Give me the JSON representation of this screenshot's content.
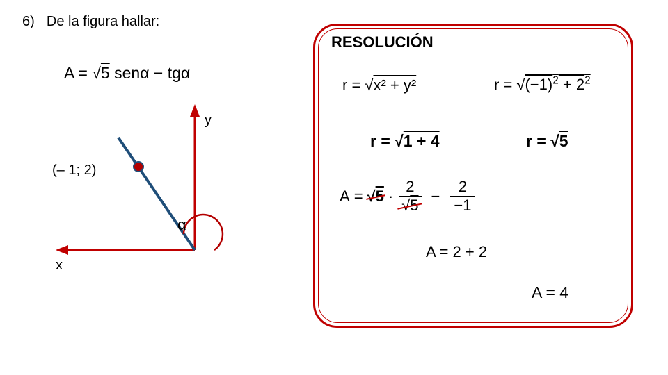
{
  "problem": {
    "number_label": "6)",
    "prompt": "De la figura hallar:",
    "formula_html": "A = √<span class=\"overline\">5</span>&nbsp;senα − tgα"
  },
  "diagram": {
    "x_axis_label": "x",
    "y_axis_label": "y",
    "point_label": "(– 1; 2)",
    "angle_label": "α",
    "colors": {
      "axis": "#c00000",
      "ray": "#1f4e79",
      "angle_arc": "#b30000",
      "dot_fill": "#b30000",
      "dot_stroke": "#1f4e79"
    }
  },
  "resolution": {
    "title": "RESOLUCIÓN",
    "border_color": "#c00000",
    "inner_border_color": "#c00000",
    "lines": {
      "r_def_html": "r = √<span class=\"overline\">x² + y²</span>",
      "r_sub_html": "r = √<span class=\"overline\">(−1)<span class=\"sup\">2</span> + 2<span class=\"sup\">2</span></span>",
      "r_sum_html": "r = √<span class=\"overline\">1 + 4</span>",
      "r_val_html": "r = √<span class=\"overline\">5</span>",
      "A_sub_numerator_left": "2",
      "A_sub_denominator_left": "√<span class=\"overline\">5</span>",
      "A_sub_numerator_right": "2",
      "A_sub_denominator_right": "−1",
      "A_label": "A",
      "A_sqrt5_html": "√<span class=\"overline\">5</span>",
      "A_simplified": "A = 2  +  2",
      "A_result": "A = 4"
    }
  }
}
